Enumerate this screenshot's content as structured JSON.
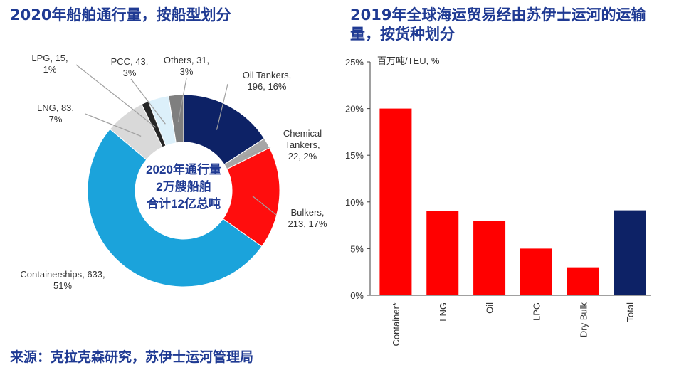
{
  "left_title": "2020年船舶通行量，按船型划分",
  "right_title": "2019年全球海运贸易经由苏伊士运河的运输量，按货种划分",
  "source": "来源：克拉克森研究，苏伊士运河管理局",
  "chart_data": [
    {
      "type": "pie",
      "title": "2020年船舶通行量，按船型划分",
      "center_text": [
        "2020年通行量",
        "2万艘船舶",
        "合计12亿总吨"
      ],
      "slices": [
        {
          "name": "Oil Tankers",
          "value": 196,
          "percent": "16%",
          "label_lines": [
            "Oil Tankers,",
            "196, 16%"
          ],
          "color": "#0d2266"
        },
        {
          "name": "Chemical Tankers",
          "value": 22,
          "percent": "2%",
          "label_lines": [
            "Chemical",
            "Tankers,",
            "22, 2%"
          ],
          "color": "#a6a6a6"
        },
        {
          "name": "Bulkers",
          "value": 213,
          "percent": "17%",
          "label_lines": [
            "Bulkers,",
            "213, 17%"
          ],
          "color": "#ff0d0d"
        },
        {
          "name": "Containerships",
          "value": 633,
          "percent": "51%",
          "label_lines": [
            "Containerships, 633,",
            "51%"
          ],
          "color": "#1ba3db"
        },
        {
          "name": "LNG",
          "value": 83,
          "percent": "7%",
          "label_lines": [
            "LNG, 83,",
            "7%"
          ],
          "color": "#d9d9d9"
        },
        {
          "name": "LPG",
          "value": 15,
          "percent": "1%",
          "label_lines": [
            "LPG, 15,",
            "1%"
          ],
          "color": "#262626"
        },
        {
          "name": "PCC",
          "value": 43,
          "percent": "3%",
          "label_lines": [
            "PCC, 43,",
            "3%"
          ],
          "color": "#dcf0fa"
        },
        {
          "name": "Others",
          "value": 31,
          "percent": "3%",
          "label_lines": [
            "Others, 31,",
            "3%"
          ],
          "color": "#7f7f7f"
        }
      ]
    },
    {
      "type": "bar",
      "title": "2019年全球海运贸易经由苏伊士运河的运输量，按货种划分",
      "ylabel": "百万吨/TEU, %",
      "categories": [
        "Container*",
        "LNG",
        "Oil",
        "LPG",
        "Dry Bulk",
        "Total"
      ],
      "values": [
        20,
        9,
        8,
        5,
        3,
        9.1
      ],
      "colors": [
        "#ff0000",
        "#ff0000",
        "#ff0000",
        "#ff0000",
        "#ff0000",
        "#0d2266"
      ],
      "yticks": [
        "0%",
        "5%",
        "10%",
        "15%",
        "20%",
        "25%"
      ],
      "ylim": [
        0,
        25
      ]
    }
  ]
}
